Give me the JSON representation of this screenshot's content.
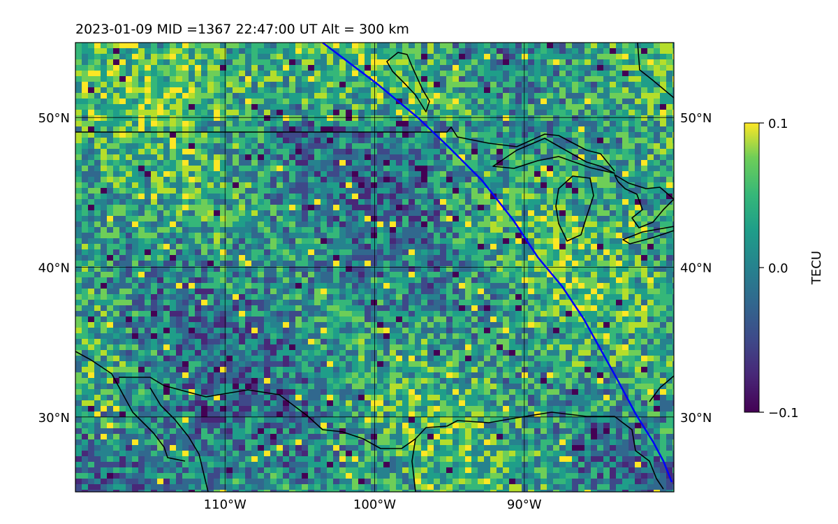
{
  "title": "2023-01-09  MID =1367    22:47:00  UT  Alt = 300 km",
  "map": {
    "lon_range": [
      -120,
      -80
    ],
    "lat_range": [
      25,
      55
    ],
    "lon_ticks": [
      {
        "value": -110,
        "label": "110°W"
      },
      {
        "value": -100,
        "label": "100°W"
      },
      {
        "value": -90,
        "label": "90°W"
      }
    ],
    "lat_ticks": [
      {
        "value": 30,
        "label": "30°N"
      },
      {
        "value": 40,
        "label": "40°N"
      },
      {
        "value": 50,
        "label": "50°N"
      }
    ],
    "grid": true,
    "track_color": "#0000ff",
    "coastline_color": "#000000"
  },
  "colorbar": {
    "label": "TECU",
    "colormap": "viridis",
    "min": -0.1,
    "max": 0.1,
    "ticks": [
      {
        "value": 0.1,
        "label": "0.1"
      },
      {
        "value": 0.0,
        "label": "0.0"
      },
      {
        "value": -0.1,
        "label": "−0.1"
      }
    ]
  }
}
